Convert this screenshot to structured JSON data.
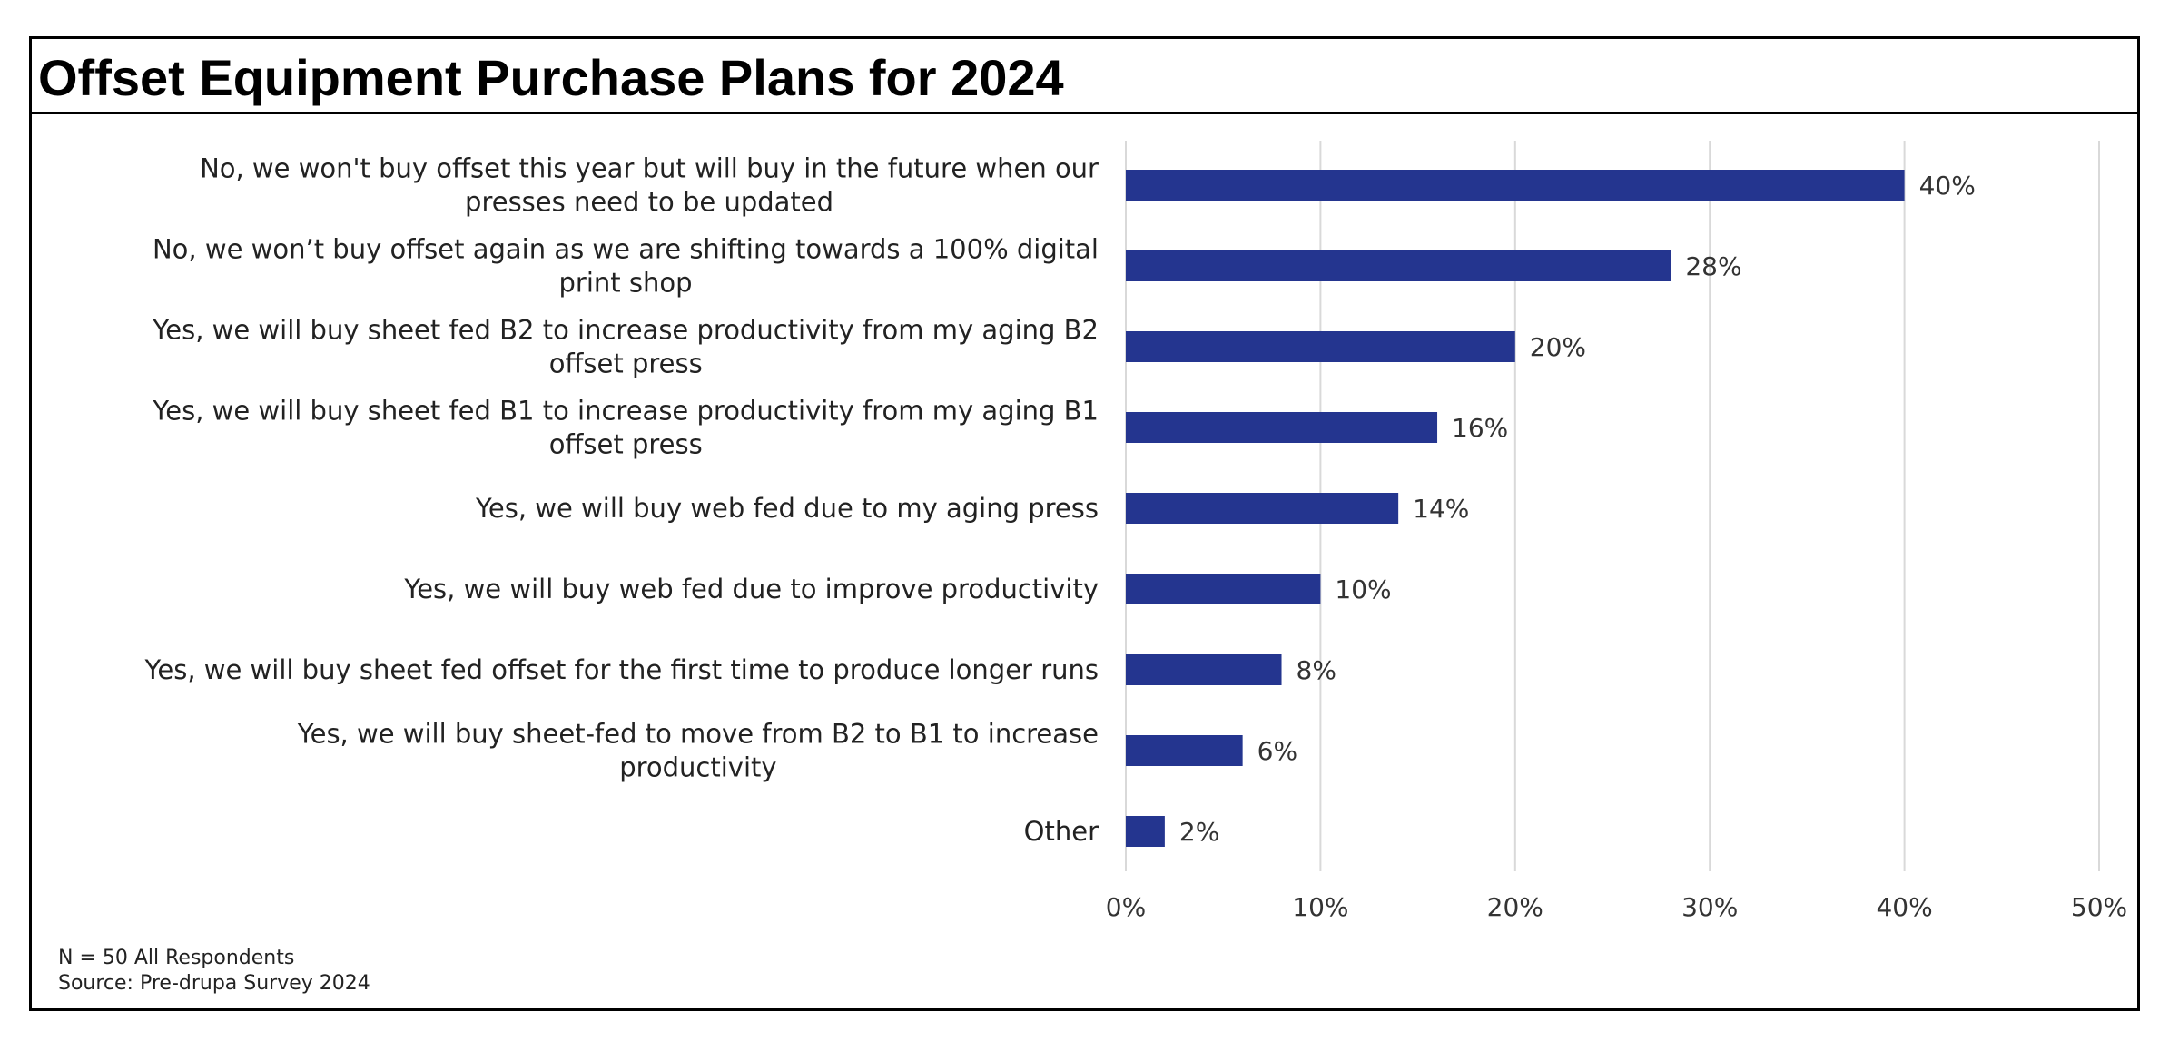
{
  "chart_data": {
    "type": "bar",
    "orientation": "horizontal",
    "title": "Offset Equipment Purchase Plans for 2024",
    "categories": [
      [
        "No, we won't buy offset this year but will buy in the future when our",
        "presses need to be updated"
      ],
      [
        "No, we won’t buy offset again as we are shifting towards a 100% digital",
        "print shop"
      ],
      [
        "Yes, we will buy sheet fed B2 to increase productivity from my aging B2",
        "offset press"
      ],
      [
        "Yes, we will buy sheet fed B1 to increase productivity from my aging B1",
        "offset press"
      ],
      [
        "Yes, we will buy web fed due to my aging press"
      ],
      [
        "Yes, we will buy web fed due to improve productivity"
      ],
      [
        "Yes, we will buy sheet fed offset for the first time to produce longer runs"
      ],
      [
        "Yes, we will buy sheet-fed to move from B2 to B1 to increase",
        "productivity"
      ],
      [
        "Other"
      ]
    ],
    "values": [
      40,
      28,
      20,
      16,
      14,
      10,
      8,
      6,
      2
    ],
    "data_labels": [
      "40%",
      "28%",
      "20%",
      "16%",
      "14%",
      "10%",
      "8%",
      "6%",
      "2%"
    ],
    "xlim": [
      0,
      50
    ],
    "ticks": [
      0,
      10,
      20,
      30,
      40,
      50
    ],
    "tick_labels": [
      "0%",
      "10%",
      "20%",
      "30%",
      "40%",
      "50%"
    ],
    "xlabel": "",
    "ylabel": "",
    "grid": true,
    "bar_color": "#24358f",
    "grid_color": "#d9d9d9"
  },
  "notes": {
    "sample": "N = 50 All Respondents",
    "source": "Source: Pre-drupa Survey 2024"
  }
}
